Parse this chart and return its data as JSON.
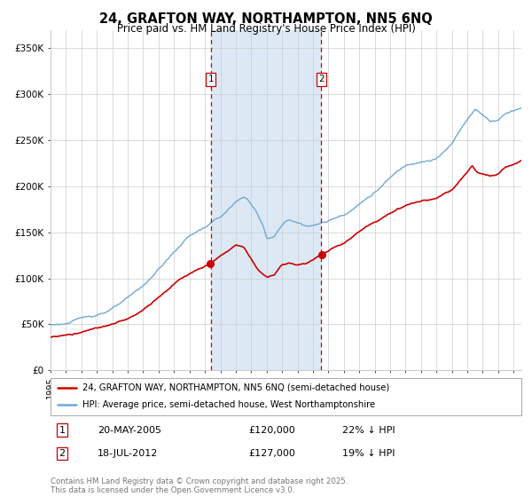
{
  "title": "24, GRAFTON WAY, NORTHAMPTON, NN5 6NQ",
  "subtitle": "Price paid vs. HM Land Registry's House Price Index (HPI)",
  "legend_line1": "24, GRAFTON WAY, NORTHAMPTON, NN5 6NQ (semi-detached house)",
  "legend_line2": "HPI: Average price, semi-detached house, West Northamptonshire",
  "footer": "Contains HM Land Registry data © Crown copyright and database right 2025.\nThis data is licensed under the Open Government Licence v3.0.",
  "sale1_date": "20-MAY-2005",
  "sale1_price": "£120,000",
  "sale1_hpi": "22% ↓ HPI",
  "sale2_date": "18-JUL-2012",
  "sale2_price": "£127,000",
  "sale2_hpi": "19% ↓ HPI",
  "sale1_x": 2005.38,
  "sale2_x": 2012.54,
  "sale1_price_val": 120000,
  "sale2_price_val": 127000,
  "hpi_color": "#6fa8d4",
  "price_color": "#cc0000",
  "vline_color": "#cc0000",
  "shade_color": "#dce9f5",
  "background_color": "#ffffff",
  "grid_color": "#cccccc",
  "yticks": [
    0,
    50000,
    100000,
    150000,
    200000,
    250000,
    300000,
    350000
  ],
  "ytick_labels": [
    "£0",
    "£50K",
    "£100K",
    "£150K",
    "£200K",
    "£250K",
    "£300K",
    "£350K"
  ],
  "ylim": [
    0,
    370000
  ],
  "xlim_start": 1995.0,
  "xlim_end": 2025.5
}
